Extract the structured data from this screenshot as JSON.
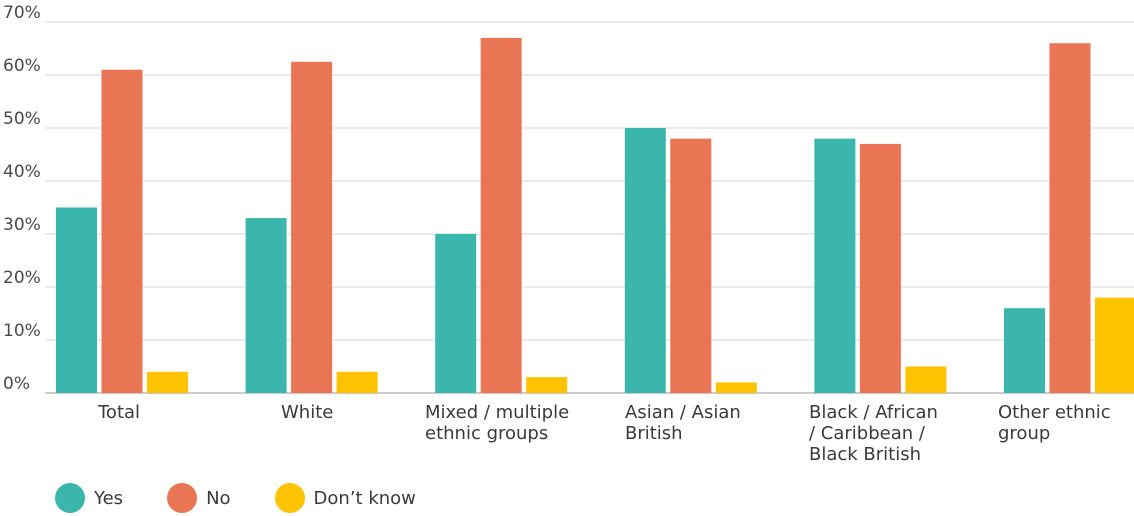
{
  "chart_data": {
    "type": "bar",
    "categories": [
      "Total",
      "White",
      "Mixed / multiple ethnic groups",
      "Asian / Asian British",
      "Black / African / Caribbean / Black British",
      "Other ethnic group"
    ],
    "category_lines": [
      [
        "Total"
      ],
      [
        "White"
      ],
      [
        "Mixed / multiple",
        "ethnic groups"
      ],
      [
        "Asian / Asian",
        "British"
      ],
      [
        "Black / African",
        "/ Caribbean /",
        "Black British"
      ],
      [
        "Other ethnic",
        "group"
      ]
    ],
    "series": [
      {
        "name": "Yes",
        "color": "#3bb6ad",
        "values": [
          35,
          33,
          30,
          50,
          48,
          16
        ]
      },
      {
        "name": "No",
        "color": "#ea7555",
        "values": [
          61,
          62.5,
          67,
          48,
          47,
          66
        ]
      },
      {
        "name": "Don’t know",
        "color": "#fdc300",
        "values": [
          4,
          4,
          3,
          2,
          5,
          18
        ]
      }
    ],
    "y_ticks": [
      "0%",
      "10%",
      "20%",
      "30%",
      "40%",
      "50%",
      "60%",
      "70%"
    ],
    "ylim": [
      0,
      70
    ],
    "grid": true,
    "legend_position": "bottom-left",
    "title": "",
    "xlabel": "",
    "ylabel": ""
  }
}
